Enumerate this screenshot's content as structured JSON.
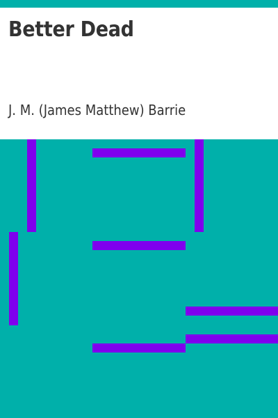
{
  "book": {
    "title": "Better Dead",
    "author": "J. M. (James Matthew) Barrie"
  },
  "colors": {
    "background": "#00b0aa",
    "panel": "#ffffff",
    "text": "#333333",
    "bars": "#7f00ee"
  }
}
